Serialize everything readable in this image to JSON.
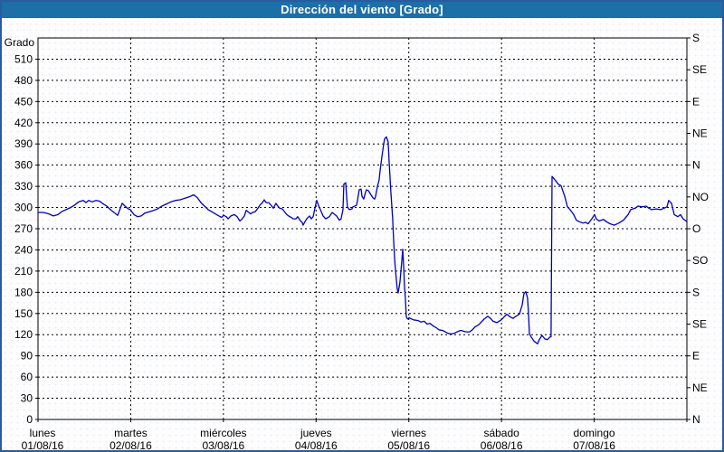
{
  "window": {
    "title": "Dirección del viento [Grado]"
  },
  "colors": {
    "titlebar": "#1d6fa8",
    "frame_border": "#2b5b9e",
    "line": "#0000bf",
    "grid": "#000000",
    "text": "#000000"
  },
  "chart_data": {
    "type": "line",
    "title": "Dirección del viento [Grado]",
    "grid": "dashed",
    "legend": "none",
    "y_axis_left": {
      "label": "Grado",
      "min": 0,
      "max": 540,
      "tick_step": 30,
      "tick_labels": [
        "0",
        "30",
        "60",
        "90",
        "120",
        "150",
        "180",
        "210",
        "240",
        "270",
        "300",
        "330",
        "360",
        "390",
        "420",
        "450",
        "480",
        "510"
      ]
    },
    "y_axis_right": {
      "ticks": [
        {
          "deg": 0,
          "label": "N"
        },
        {
          "deg": 45,
          "label": "NE"
        },
        {
          "deg": 90,
          "label": "E"
        },
        {
          "deg": 135,
          "label": "SE"
        },
        {
          "deg": 180,
          "label": "S"
        },
        {
          "deg": 225,
          "label": "SO"
        },
        {
          "deg": 270,
          "label": "O"
        },
        {
          "deg": 315,
          "label": "NO"
        },
        {
          "deg": 360,
          "label": "N"
        },
        {
          "deg": 405,
          "label": "NE"
        },
        {
          "deg": 450,
          "label": "E"
        },
        {
          "deg": 495,
          "label": "SE"
        },
        {
          "deg": 540,
          "label": "S"
        }
      ]
    },
    "x_axis": {
      "span_days": 7,
      "days": [
        {
          "name": "lunes",
          "date": "01/08/16"
        },
        {
          "name": "martes",
          "date": "02/08/16"
        },
        {
          "name": "miércoles",
          "date": "03/08/16"
        },
        {
          "name": "jueves",
          "date": "04/08/16"
        },
        {
          "name": "viernes",
          "date": "05/08/16"
        },
        {
          "name": "sábado",
          "date": "06/08/16"
        },
        {
          "name": "domingo",
          "date": "07/08/16"
        }
      ]
    },
    "series": [
      {
        "name": "Dirección del viento",
        "color": "#0000bf",
        "points": [
          [
            0.0,
            293
          ],
          [
            0.059,
            293
          ],
          [
            0.117,
            291
          ],
          [
            0.166,
            288
          ],
          [
            0.215,
            290
          ],
          [
            0.254,
            294
          ],
          [
            0.303,
            297
          ],
          [
            0.351,
            300
          ],
          [
            0.39,
            303
          ],
          [
            0.439,
            308
          ],
          [
            0.488,
            310
          ],
          [
            0.517,
            307
          ],
          [
            0.547,
            310
          ],
          [
            0.586,
            308
          ],
          [
            0.625,
            310
          ],
          [
            0.664,
            309
          ],
          [
            0.703,
            305
          ],
          [
            0.742,
            302
          ],
          [
            0.781,
            297
          ],
          [
            0.82,
            293
          ],
          [
            0.859,
            289
          ],
          [
            0.908,
            306
          ],
          [
            0.947,
            301
          ],
          [
            0.976,
            298
          ],
          [
            0.996,
            297
          ],
          [
            1.035,
            290
          ],
          [
            1.074,
            287
          ],
          [
            1.113,
            288
          ],
          [
            1.152,
            292
          ],
          [
            1.201,
            294
          ],
          [
            1.25,
            296
          ],
          [
            1.289,
            298
          ],
          [
            1.337,
            302
          ],
          [
            1.386,
            305
          ],
          [
            1.435,
            308
          ],
          [
            1.484,
            310
          ],
          [
            1.533,
            311
          ],
          [
            1.582,
            313
          ],
          [
            1.63,
            315
          ],
          [
            1.679,
            318
          ],
          [
            1.718,
            314
          ],
          [
            1.757,
            307
          ],
          [
            1.796,
            302
          ],
          [
            1.835,
            297
          ],
          [
            1.874,
            294
          ],
          [
            1.913,
            291
          ],
          [
            1.952,
            288
          ],
          [
            1.982,
            286
          ],
          [
            2.001,
            289
          ],
          [
            2.031,
            287
          ],
          [
            2.05,
            284
          ],
          [
            2.08,
            288
          ],
          [
            2.119,
            290
          ],
          [
            2.148,
            287
          ],
          [
            2.177,
            281
          ],
          [
            2.197,
            283
          ],
          [
            2.226,
            288
          ],
          [
            2.245,
            296
          ],
          [
            2.265,
            294
          ],
          [
            2.294,
            291
          ],
          [
            2.314,
            293
          ],
          [
            2.343,
            294
          ],
          [
            2.372,
            299
          ],
          [
            2.392,
            303
          ],
          [
            2.421,
            307
          ],
          [
            2.441,
            311
          ],
          [
            2.46,
            307
          ],
          [
            2.489,
            307
          ],
          [
            2.509,
            304
          ],
          [
            2.538,
            299
          ],
          [
            2.567,
            306
          ],
          [
            2.587,
            302
          ],
          [
            2.607,
            299
          ],
          [
            2.636,
            298
          ],
          [
            2.665,
            293
          ],
          [
            2.684,
            290
          ],
          [
            2.714,
            287
          ],
          [
            2.733,
            286
          ],
          [
            2.753,
            284
          ],
          [
            2.782,
            284
          ],
          [
            2.802,
            287
          ],
          [
            2.831,
            281
          ],
          [
            2.85,
            279
          ],
          [
            2.86,
            275
          ],
          [
            2.88,
            280
          ],
          [
            2.899,
            284
          ],
          [
            2.929,
            288
          ],
          [
            2.948,
            284
          ],
          [
            2.968,
            287
          ],
          [
            2.997,
            305
          ],
          [
            3.007,
            310
          ],
          [
            3.026,
            303
          ],
          [
            3.046,
            297
          ],
          [
            3.075,
            288
          ],
          [
            3.104,
            284
          ],
          [
            3.143,
            287
          ],
          [
            3.173,
            293
          ],
          [
            3.202,
            290
          ],
          [
            3.221,
            288
          ],
          [
            3.251,
            282
          ],
          [
            3.27,
            284
          ],
          [
            3.29,
            297
          ],
          [
            3.299,
            333
          ],
          [
            3.319,
            335
          ],
          [
            3.329,
            316
          ],
          [
            3.338,
            301
          ],
          [
            3.358,
            297
          ],
          [
            3.387,
            298
          ],
          [
            3.397,
            301
          ],
          [
            3.436,
            303
          ],
          [
            3.446,
            310
          ],
          [
            3.465,
            325
          ],
          [
            3.485,
            326
          ],
          [
            3.495,
            316
          ],
          [
            3.514,
            312
          ],
          [
            3.534,
            322
          ],
          [
            3.543,
            325
          ],
          [
            3.563,
            324
          ],
          [
            3.582,
            320
          ],
          [
            3.592,
            318
          ],
          [
            3.612,
            314
          ],
          [
            3.631,
            312
          ],
          [
            3.641,
            315
          ],
          [
            3.66,
            329
          ],
          [
            3.68,
            339
          ],
          [
            3.69,
            352
          ],
          [
            3.709,
            371
          ],
          [
            3.729,
            390
          ],
          [
            3.738,
            397
          ],
          [
            3.758,
            400
          ],
          [
            3.777,
            393
          ],
          [
            3.787,
            367
          ],
          [
            3.797,
            344
          ],
          [
            3.807,
            322
          ],
          [
            3.826,
            284
          ],
          [
            3.836,
            255
          ],
          [
            3.846,
            230
          ],
          [
            3.856,
            211
          ],
          [
            3.875,
            185
          ],
          [
            3.885,
            179
          ],
          [
            3.904,
            194
          ],
          [
            3.924,
            223
          ],
          [
            3.934,
            241
          ],
          [
            3.943,
            220
          ],
          [
            3.953,
            190
          ],
          [
            3.963,
            172
          ],
          [
            3.973,
            146
          ],
          [
            3.982,
            143
          ],
          [
            3.992,
            142
          ],
          [
            4.002,
            144
          ],
          [
            4.051,
            141
          ],
          [
            4.1,
            140
          ],
          [
            4.129,
            138
          ],
          [
            4.168,
            139
          ],
          [
            4.197,
            135
          ],
          [
            4.227,
            136
          ],
          [
            4.266,
            132
          ],
          [
            4.295,
            130
          ],
          [
            4.324,
            127
          ],
          [
            4.363,
            126
          ],
          [
            4.393,
            124
          ],
          [
            4.422,
            122
          ],
          [
            4.461,
            121
          ],
          [
            4.49,
            122
          ],
          [
            4.52,
            124
          ],
          [
            4.559,
            126
          ],
          [
            4.588,
            125
          ],
          [
            4.617,
            124
          ],
          [
            4.656,
            124
          ],
          [
            4.686,
            127
          ],
          [
            4.715,
            131
          ],
          [
            4.754,
            134
          ],
          [
            4.783,
            138
          ],
          [
            4.812,
            142
          ],
          [
            4.852,
            146
          ],
          [
            4.881,
            143
          ],
          [
            4.91,
            139
          ],
          [
            4.949,
            137
          ],
          [
            4.998,
            141
          ],
          [
            5.027,
            145
          ],
          [
            5.057,
            149
          ],
          [
            5.096,
            145
          ],
          [
            5.125,
            143
          ],
          [
            5.154,
            146
          ],
          [
            5.193,
            149
          ],
          [
            5.223,
            162
          ],
          [
            5.242,
            178
          ],
          [
            5.262,
            181
          ],
          [
            5.281,
            172
          ],
          [
            5.291,
            152
          ],
          [
            5.301,
            121
          ],
          [
            5.32,
            117
          ],
          [
            5.35,
            111
          ],
          [
            5.389,
            107
          ],
          [
            5.408,
            113
          ],
          [
            5.437,
            119
          ],
          [
            5.467,
            114
          ],
          [
            5.496,
            113
          ],
          [
            5.525,
            117
          ],
          [
            5.535,
            117
          ],
          [
            5.545,
            344
          ],
          [
            5.584,
            338
          ],
          [
            5.613,
            333
          ],
          [
            5.642,
            331
          ],
          [
            5.682,
            316
          ],
          [
            5.711,
            301
          ],
          [
            5.74,
            297
          ],
          [
            5.779,
            290
          ],
          [
            5.808,
            282
          ],
          [
            5.838,
            280
          ],
          [
            5.877,
            278
          ],
          [
            5.906,
            279
          ],
          [
            5.935,
            277
          ],
          [
            5.974,
            284
          ],
          [
            6.004,
            290
          ],
          [
            6.023,
            284
          ],
          [
            6.052,
            281
          ],
          [
            6.101,
            283
          ],
          [
            6.131,
            280
          ],
          [
            6.17,
            277
          ],
          [
            6.218,
            275
          ],
          [
            6.267,
            278
          ],
          [
            6.316,
            282
          ],
          [
            6.365,
            290
          ],
          [
            6.394,
            297
          ],
          [
            6.443,
            299
          ],
          [
            6.472,
            302
          ],
          [
            6.521,
            301
          ],
          [
            6.56,
            302
          ],
          [
            6.59,
            299
          ],
          [
            6.619,
            297
          ],
          [
            6.668,
            298
          ],
          [
            6.716,
            297
          ],
          [
            6.755,
            299
          ],
          [
            6.785,
            301
          ],
          [
            6.804,
            310
          ],
          [
            6.834,
            306
          ],
          [
            6.863,
            290
          ],
          [
            6.902,
            287
          ],
          [
            6.931,
            290
          ],
          [
            6.96,
            284
          ],
          [
            7.0,
            280
          ]
        ]
      }
    ]
  }
}
